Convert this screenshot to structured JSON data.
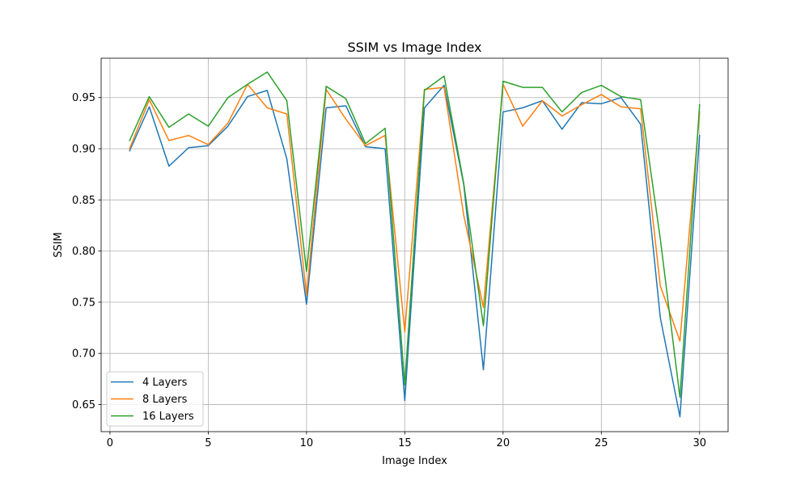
{
  "chart_data": {
    "type": "line",
    "title": "SSIM vs Image Index",
    "xlabel": "Image Index",
    "ylabel": "SSIM",
    "xlim": [
      -0.45,
      31.45
    ],
    "ylim": [
      0.6235,
      0.9885
    ],
    "x_ticks": [
      0,
      5,
      10,
      15,
      20,
      25,
      30
    ],
    "y_ticks": [
      0.65,
      0.7,
      0.75,
      0.8,
      0.85,
      0.9,
      0.95
    ],
    "x_tick_labels": [
      "0",
      "5",
      "10",
      "15",
      "20",
      "25",
      "30"
    ],
    "y_tick_labels": [
      "0.65",
      "0.70",
      "0.75",
      "0.80",
      "0.85",
      "0.90",
      "0.95"
    ],
    "grid": true,
    "legend_position": "lower-left",
    "x": [
      1,
      2,
      3,
      4,
      5,
      6,
      7,
      8,
      9,
      10,
      11,
      12,
      13,
      14,
      15,
      16,
      17,
      18,
      19,
      20,
      21,
      22,
      23,
      24,
      25,
      26,
      27,
      28,
      29,
      30
    ],
    "series": [
      {
        "name": "4 Layers",
        "color": "#1f77b4",
        "values": [
          0.898,
          0.941,
          0.883,
          0.901,
          0.903,
          0.922,
          0.951,
          0.957,
          0.89,
          0.748,
          0.94,
          0.942,
          0.902,
          0.9,
          0.654,
          0.94,
          0.962,
          0.865,
          0.684,
          0.936,
          0.94,
          0.947,
          0.919,
          0.945,
          0.944,
          0.95,
          0.924,
          0.735,
          0.638,
          0.913
        ]
      },
      {
        "name": "8 Layers",
        "color": "#ff7f0e",
        "values": [
          0.9,
          0.948,
          0.908,
          0.913,
          0.904,
          0.925,
          0.963,
          0.94,
          0.934,
          0.757,
          0.958,
          0.929,
          0.903,
          0.913,
          0.721,
          0.958,
          0.96,
          0.835,
          0.745,
          0.963,
          0.922,
          0.947,
          0.932,
          0.943,
          0.953,
          0.941,
          0.939,
          0.766,
          0.712,
          0.936
        ]
      },
      {
        "name": "16 Layers",
        "color": "#2ca02c",
        "values": [
          0.908,
          0.951,
          0.921,
          0.934,
          0.922,
          0.95,
          0.963,
          0.975,
          0.947,
          0.78,
          0.961,
          0.949,
          0.905,
          0.92,
          0.669,
          0.957,
          0.971,
          0.866,
          0.727,
          0.966,
          0.96,
          0.96,
          0.936,
          0.955,
          0.962,
          0.951,
          0.948,
          0.812,
          0.657,
          0.943
        ]
      }
    ]
  }
}
